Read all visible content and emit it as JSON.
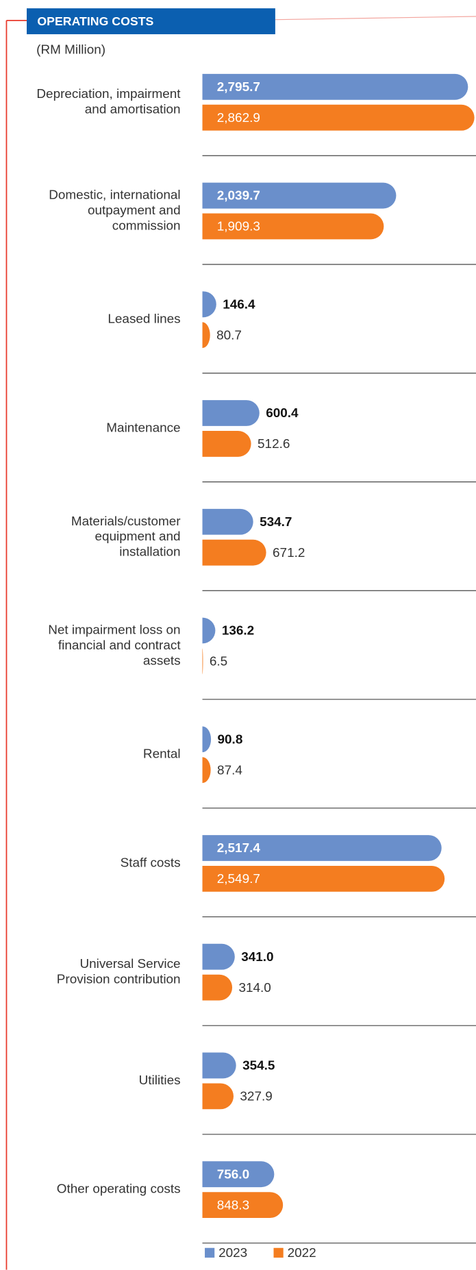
{
  "chart_data": {
    "type": "bar",
    "orientation": "horizontal",
    "title": "OPERATING COSTS",
    "subtitle": "(RM Million)",
    "categories": [
      "Depreciation, impairment\nand amortisation",
      "Domestic, international\noutpayment and\ncommission",
      "Leased lines",
      "Maintenance",
      "Materials/customer\nequipment and\ninstallation",
      "Net impairment loss on\nfinancial and contract\nassets",
      "Rental",
      "Staff costs",
      "Universal Service\nProvision contribution",
      "Utilities",
      "Other operating costs"
    ],
    "series": [
      {
        "name": "2023",
        "color": "#6a8fcb",
        "values": [
          2795.7,
          2039.7,
          146.4,
          600.4,
          534.7,
          136.2,
          90.8,
          2517.4,
          341.0,
          354.5,
          756.0
        ],
        "value_labels": [
          "2,795.7",
          "2,039.7",
          "146.4",
          "600.4",
          "534.7",
          "136.2",
          "90.8",
          "2,517.4",
          "341.0",
          "354.5",
          "756.0"
        ]
      },
      {
        "name": "2022",
        "color": "#f47d20",
        "values": [
          2862.9,
          1909.3,
          80.7,
          512.6,
          671.2,
          6.5,
          87.4,
          2549.7,
          314.0,
          327.9,
          848.3
        ],
        "value_labels": [
          "2,862.9",
          "1,909.3",
          "80.7",
          "512.6",
          "671.2",
          "6.5",
          "87.4",
          "2,549.7",
          "314.0",
          "327.9",
          "848.3"
        ]
      }
    ]
  }
}
